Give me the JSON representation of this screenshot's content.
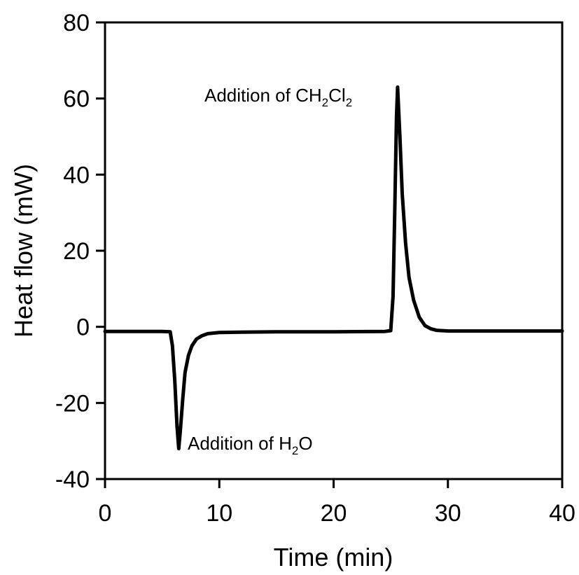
{
  "chart_data": {
    "type": "line",
    "xlabel": "Time (min)",
    "ylabel": "Heat flow (mW)",
    "xlim": [
      0,
      40
    ],
    "ylim": [
      -40,
      80
    ],
    "x_ticks": [
      0,
      10,
      20,
      30,
      40
    ],
    "x_tick_labels": [
      "0",
      "10",
      "20",
      "30",
      "40"
    ],
    "y_ticks": [
      -40,
      -20,
      0,
      20,
      40,
      60,
      80
    ],
    "y_tick_labels": [
      "-40",
      "-20",
      "0",
      "20",
      "40",
      "60",
      "80"
    ],
    "grid": false,
    "color": "#000000",
    "series": [
      {
        "x": [
          0,
          5.0,
          5.7,
          5.9,
          6.1,
          6.3,
          6.45,
          6.6,
          6.8,
          7.0,
          7.3,
          7.6,
          8.0,
          8.5,
          9.0,
          10.0,
          12.0,
          15.0,
          20.0,
          24.5,
          25.0,
          25.2,
          25.35,
          25.5,
          25.6,
          25.8,
          26.0,
          26.3,
          26.6,
          27.0,
          27.5,
          28.0,
          28.5,
          29.0,
          30.0,
          33.0,
          36.0,
          40.0
        ],
        "y": [
          -1.2,
          -1.2,
          -1.3,
          -5,
          -14,
          -26,
          -32,
          -27,
          -19,
          -12,
          -7.5,
          -5,
          -3.2,
          -2.3,
          -1.8,
          -1.5,
          -1.4,
          -1.3,
          -1.3,
          -1.2,
          -1.0,
          8,
          30,
          55,
          63,
          50,
          35,
          22,
          13,
          7,
          2.5,
          0.3,
          -0.5,
          -0.9,
          -1.1,
          -1.1,
          -1.1,
          -1.1
        ]
      }
    ],
    "annotations": [
      {
        "text": "Addition of CH",
        "sub1": "2",
        "mid": "Cl",
        "sub2": "2",
        "x": 25.6,
        "y": 63
      },
      {
        "text": "Addition of H",
        "sub1": "2",
        "mid": "O",
        "x": 6.45,
        "y": -32
      }
    ]
  }
}
